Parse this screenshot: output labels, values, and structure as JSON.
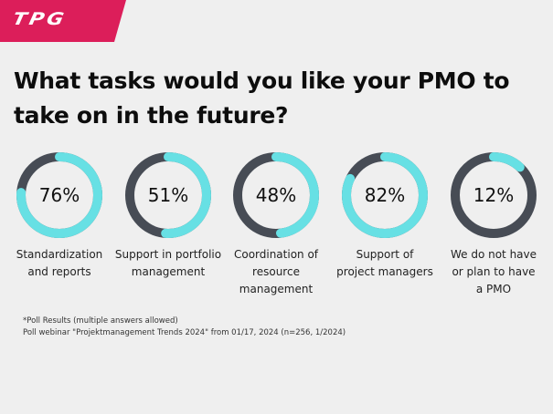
{
  "brand": {
    "logo_text": "TPG",
    "accent_color": "#dc1e5a"
  },
  "title": {
    "line1": "What tasks would you like your PMO to",
    "line2": "take on in the future?"
  },
  "colors": {
    "background": "#efefef",
    "ring_fill": "#67e0e4",
    "ring_track": "#474c55"
  },
  "chart_data": {
    "type": "donut",
    "title": "What tasks would you like your PMO to take on in the future?",
    "unit": "%",
    "categories": [
      "Standardization and reports",
      "Support in portfolio management",
      "Coordination of resource management",
      "Support of project managers",
      "We do not have or plan to have a PMO"
    ],
    "values": [
      76,
      51,
      48,
      82,
      12
    ],
    "ylim": [
      0,
      100
    ],
    "legend": "none",
    "grid": false
  },
  "rings": [
    {
      "value": 76,
      "value_label": "76%",
      "label": "Standardization\nand reports"
    },
    {
      "value": 51,
      "value_label": "51%",
      "label": "Support in portfolio\nmanagement"
    },
    {
      "value": 48,
      "value_label": "48%",
      "label": "Coordination of\nresource\nmanagement"
    },
    {
      "value": 82,
      "value_label": "82%",
      "label": "Support of\nproject managers"
    },
    {
      "value": 12,
      "value_label": "12%",
      "label": "We do not have\nor plan to have\na PMO"
    }
  ],
  "footnote": {
    "line1": "*Poll Results (multiple answers allowed)",
    "line2": "Poll webinar \"Projektmanagement Trends 2024\" from 01/17, 2024 (n=256, 1/2024)"
  }
}
